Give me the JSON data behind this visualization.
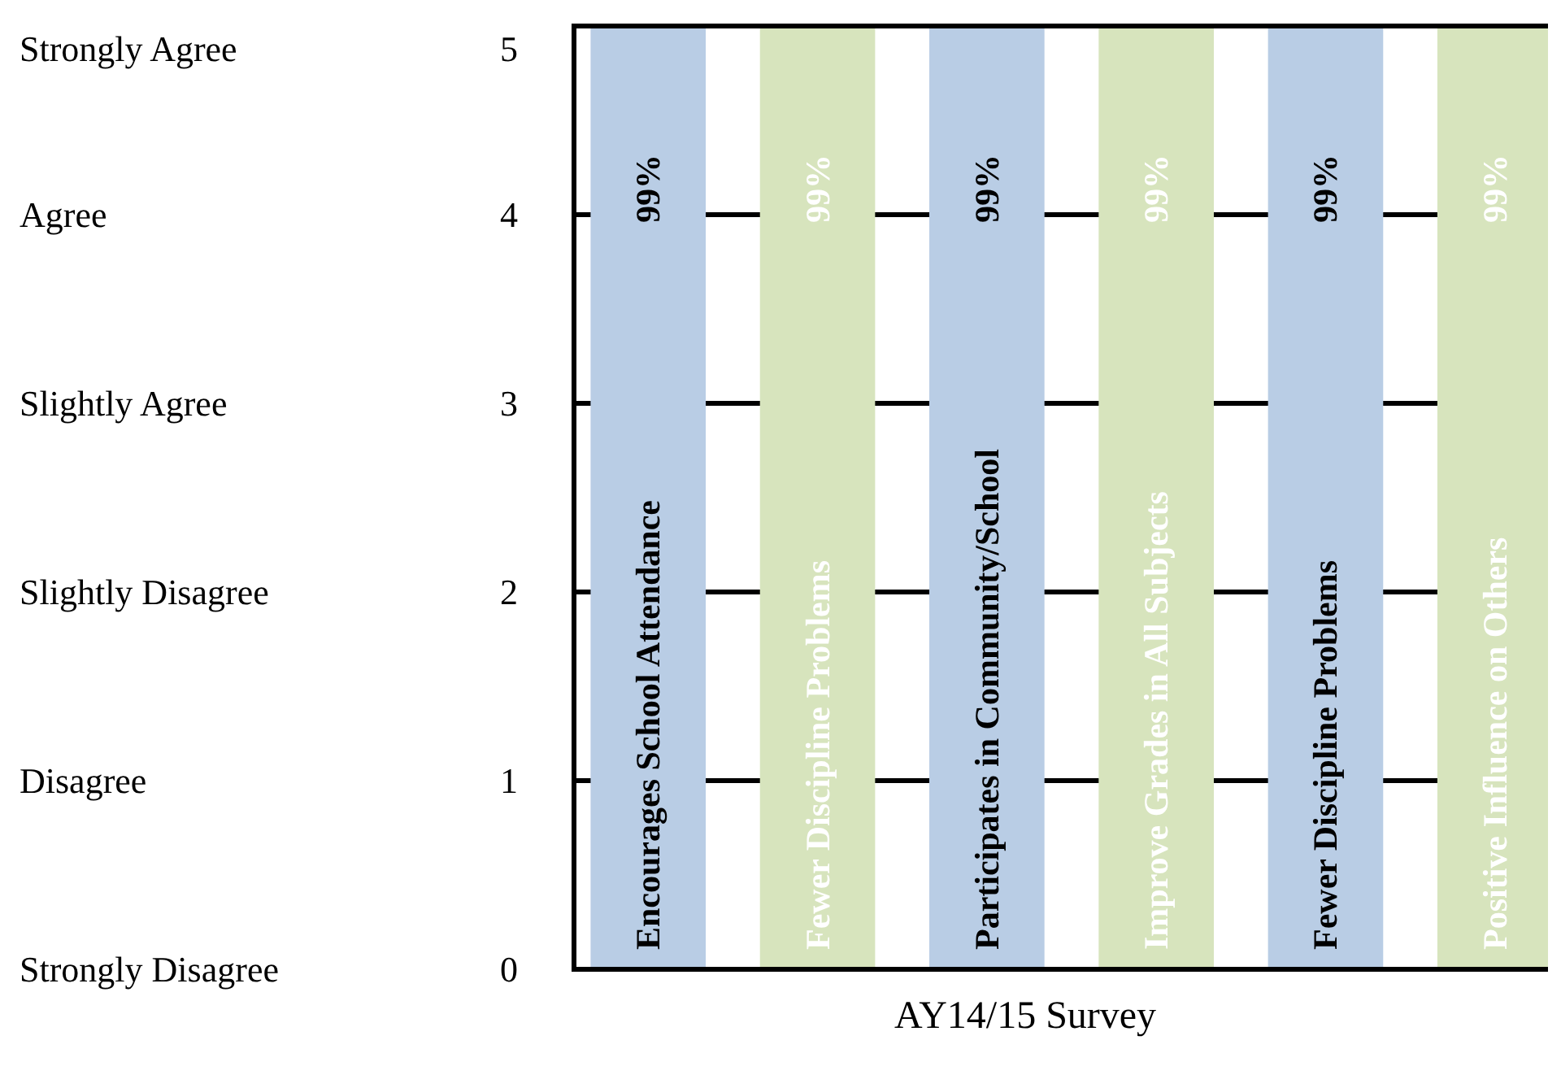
{
  "chart_data": {
    "type": "bar",
    "xlabel": "AY14/15 Survey",
    "categories": [
      "Encourages School Attendance",
      "Fewer Discipline Problems",
      "Participates in Community/School",
      "Improve Grades in All Subjects",
      "Fewer Discipline Problems",
      "Positive Influence on Others"
    ],
    "values": [
      5,
      5,
      5,
      5,
      5,
      5
    ],
    "annotations": [
      "99%",
      "99%",
      "99%",
      "99%",
      "99%",
      "99%",
      "Strongly Disagree",
      "Disagree",
      "Slightly Disagree",
      "Slightly Agree",
      "Agree",
      "Strongly Agree"
    ],
    "colors": [
      "#b9cde5",
      "#d7e4bd",
      "#b9cde5",
      "#d7e4bd",
      "#b9cde5",
      "#d7e4bd"
    ],
    "ylim": [
      0,
      5
    ],
    "yticks": [
      0,
      1,
      2,
      3,
      4,
      5
    ],
    "grid": "y"
  }
}
